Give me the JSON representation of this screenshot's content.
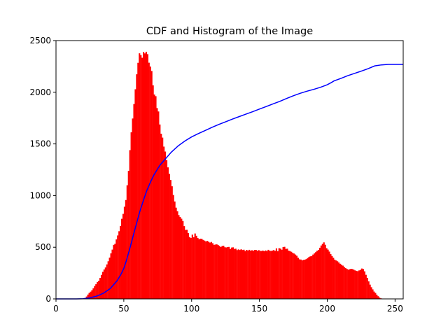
{
  "chart_data": {
    "type": "bar",
    "title": "CDF and Histogram of the Image",
    "xlabel": "",
    "ylabel": "",
    "xlim": [
      0,
      256
    ],
    "ylim": [
      0,
      2500
    ],
    "xticks": [
      0,
      50,
      100,
      150,
      200,
      250
    ],
    "yticks": [
      0,
      500,
      1000,
      1500,
      2000,
      2500
    ],
    "grid": false,
    "series": [
      {
        "kind": "histogram",
        "color": "#ff0000",
        "bin_width": 1,
        "x_start": 0,
        "values": [
          0,
          0,
          0,
          0,
          0,
          0,
          0,
          0,
          0,
          0,
          0,
          0,
          0,
          0,
          0,
          0,
          0,
          0,
          0,
          0,
          3,
          10,
          23,
          42,
          58,
          70,
          84,
          103,
          125,
          142,
          164,
          175,
          203,
          232,
          262,
          285,
          304,
          334,
          364,
          400,
          441,
          477,
          523,
          533,
          576,
          614,
          655,
          706,
          775,
          823,
          892,
          957,
          1100,
          1239,
          1440,
          1612,
          1746,
          1886,
          2029,
          2174,
          2285,
          2377,
          2360,
          2334,
          2389,
          2376,
          2392,
          2369,
          2286,
          2249,
          2206,
          2067,
          1978,
          1962,
          1847,
          1814,
          1688,
          1599,
          1561,
          1474,
          1426,
          1343,
          1273,
          1210,
          1151,
          1090,
          1006,
          943,
          883,
          849,
          811,
          792,
          776,
          754,
          704,
          668,
          669,
          637,
          598,
          590,
          622,
          597,
          633,
          611,
          589,
          578,
          583,
          581,
          571,
          564,
          556,
          562,
          553,
          545,
          551,
          539,
          523,
          526,
          528,
          521,
          513,
          502,
          512,
          515,
          500,
          498,
          501,
          503,
          483,
          497,
          499,
          484,
          486,
          472,
          479,
          473,
          480,
          473,
          476,
          463,
          474,
          468,
          475,
          467,
          471,
          466,
          474,
          473,
          466,
          472,
          465,
          464,
          468,
          462,
          469,
          463,
          475,
          467,
          464,
          468,
          472,
          465,
          489,
          462,
          491,
          487,
          476,
          502,
          504,
          484,
          486,
          467,
          463,
          456,
          446,
          439,
          429,
          418,
          398,
          383,
          381,
          373,
          378,
          380,
          385,
          395,
          405,
          412,
          415,
          429,
          441,
          452,
          466,
          473,
          495,
          517,
          532,
          547,
          524,
          491,
          477,
          458,
          433,
          415,
          398,
          380,
          372,
          364,
          353,
          340,
          331,
          322,
          309,
          298,
          290,
          283,
          287,
          291,
          289,
          283,
          276,
          271,
          268,
          276,
          281,
          294,
          289,
          267,
          233,
          203,
          170,
          138,
          113,
          92,
          71,
          58,
          41,
          26,
          13,
          6,
          2,
          0,
          0,
          0,
          0,
          0,
          0
        ]
      },
      {
        "kind": "cdf",
        "color": "#0000ff",
        "x": [
          0,
          15,
          20,
          25,
          30,
          35,
          40,
          45,
          48,
          50,
          52,
          55,
          57,
          60,
          62,
          65,
          67,
          70,
          72,
          75,
          77,
          80,
          85,
          90,
          95,
          100,
          105,
          110,
          115,
          120,
          125,
          130,
          135,
          140,
          145,
          150,
          155,
          160,
          165,
          170,
          175,
          180,
          185,
          190,
          195,
          200,
          203,
          205,
          210,
          215,
          220,
          225,
          230,
          235,
          240,
          245,
          250,
          256
        ],
        "y": [
          0,
          0,
          2,
          10,
          27,
          55,
          100,
          175,
          240,
          295,
          375,
          515,
          615,
          760,
          855,
          975,
          1050,
          1140,
          1195,
          1260,
          1300,
          1345,
          1420,
          1480,
          1528,
          1568,
          1600,
          1630,
          1660,
          1688,
          1714,
          1740,
          1764,
          1788,
          1812,
          1837,
          1862,
          1887,
          1912,
          1940,
          1966,
          1990,
          2010,
          2028,
          2048,
          2073,
          2094,
          2110,
          2134,
          2160,
          2182,
          2204,
          2228,
          2255,
          2265,
          2270,
          2270,
          2270
        ]
      }
    ]
  }
}
